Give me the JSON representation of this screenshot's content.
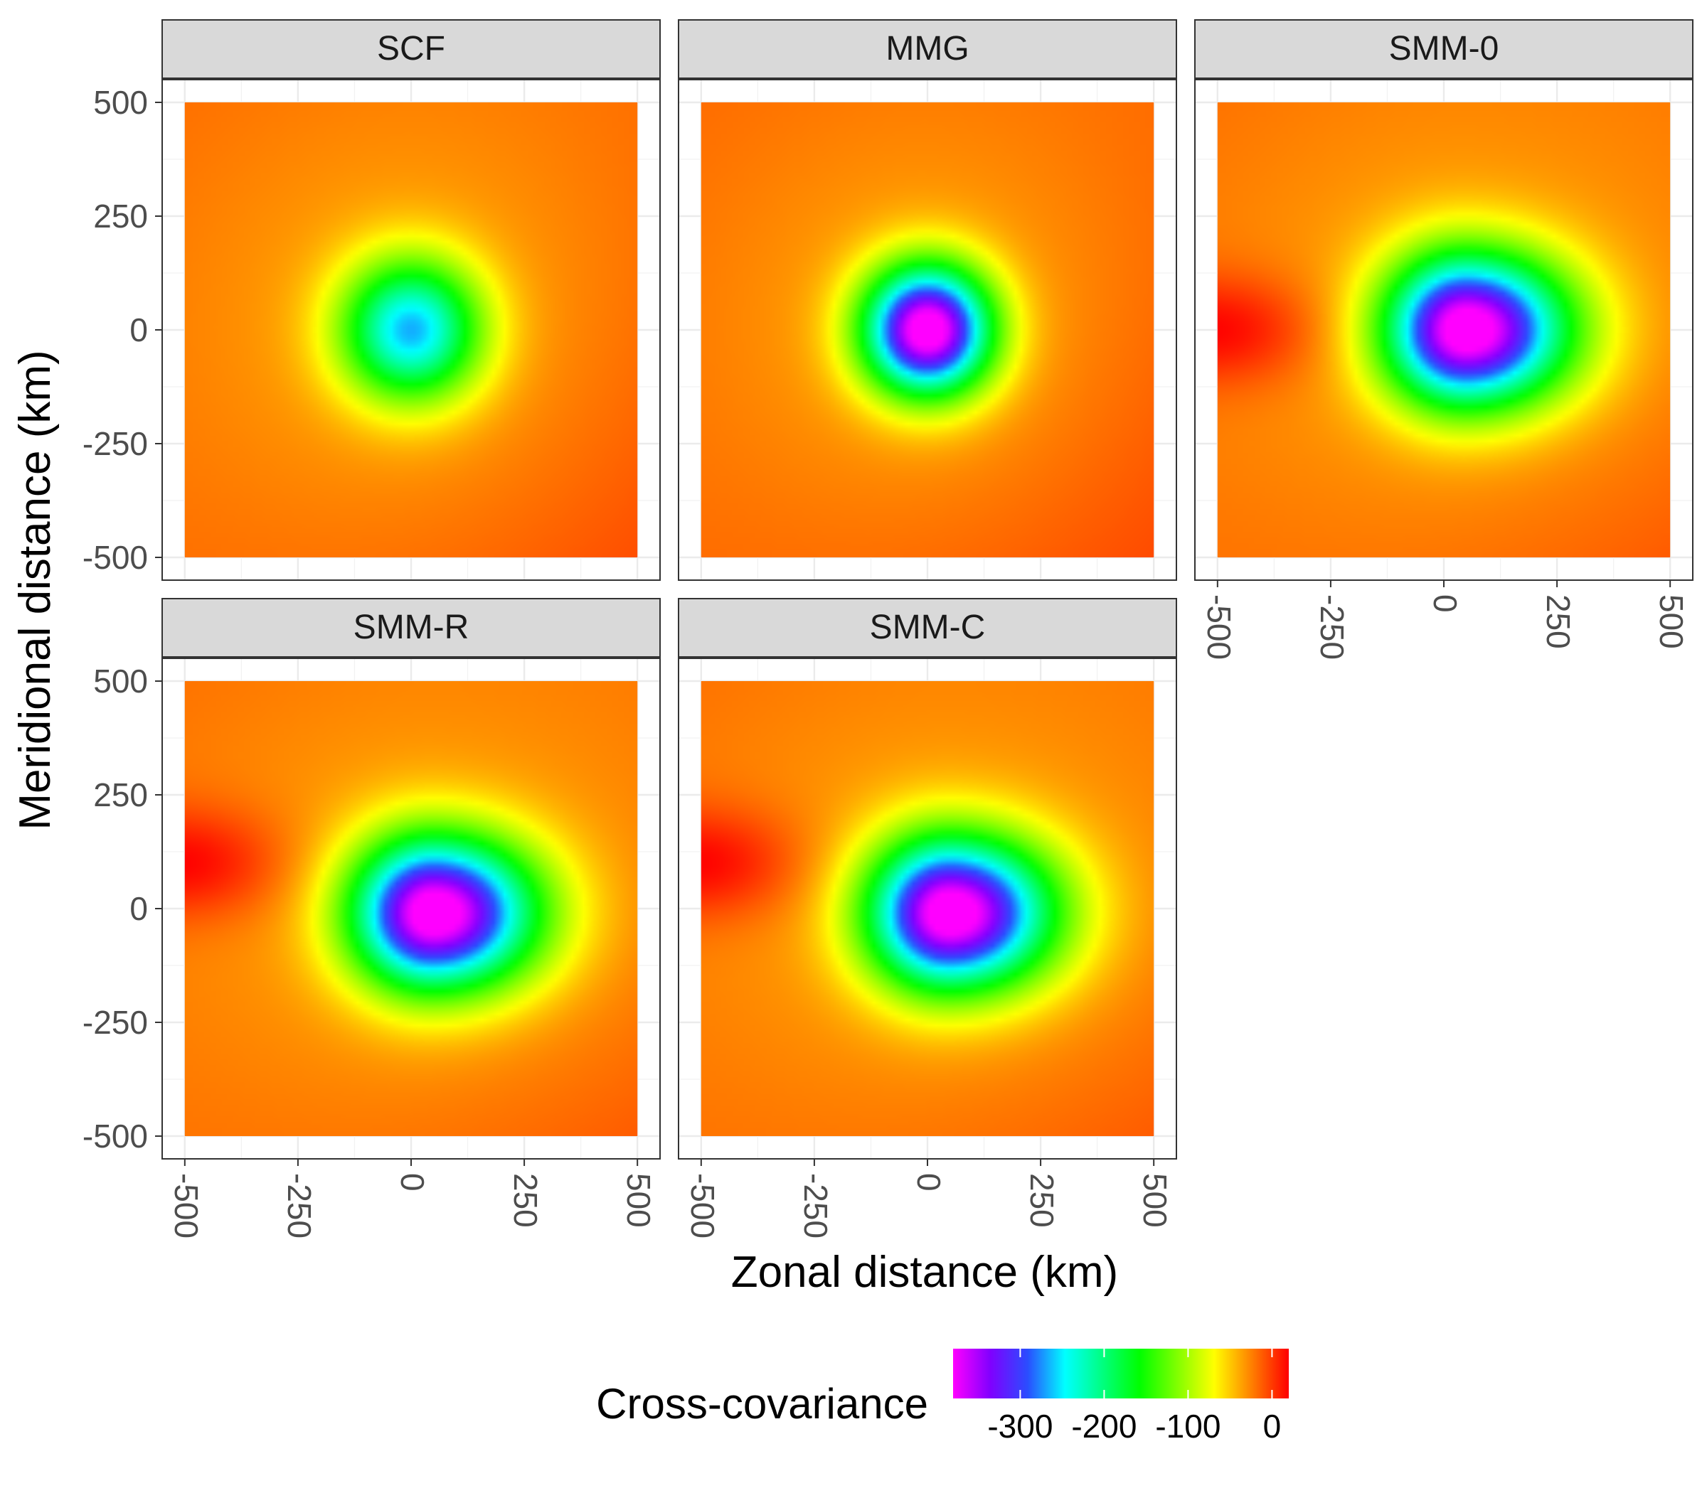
{
  "chart_data": {
    "type": "heatmap",
    "facets": [
      "SCF",
      "MMG",
      "SMM-0",
      "SMM-R",
      "SMM-C"
    ],
    "x_axis_label": "Zonal distance (km)",
    "y_axis_label": "Meridional distance (km)",
    "x_ticks": [
      -500,
      -250,
      0,
      250,
      500
    ],
    "y_ticks": [
      500,
      250,
      0,
      -250,
      -500
    ],
    "x_tick_labels": [
      "-500",
      "-250",
      "0",
      "250",
      "500"
    ],
    "y_tick_labels": [
      "500",
      "250",
      "0",
      "-250",
      "-500"
    ],
    "xlim": [
      -500,
      500
    ],
    "ylim": [
      -500,
      500
    ],
    "legend": {
      "title": "Cross-covariance",
      "position": "bottom",
      "range": [
        -380,
        20
      ],
      "ticks": [
        -300,
        -200,
        -100,
        0
      ],
      "tick_labels": [
        "-300",
        "-200",
        "-100",
        "0"
      ],
      "palette": [
        "#ff00ff",
        "#8000ff",
        "#2a4dff",
        "#00ffff",
        "#00ff80",
        "#00ff00",
        "#80ff00",
        "#ffff00",
        "#ff8000",
        "#ff0000"
      ]
    },
    "panels": [
      {
        "name": "SCF",
        "center": [
          0,
          0
        ],
        "minimum": -230,
        "scale_x": 120,
        "scale_y": 120,
        "west_lobe": false
      },
      {
        "name": "MMG",
        "center": [
          0,
          0
        ],
        "minimum": -370,
        "scale_x": 110,
        "scale_y": 110,
        "west_lobe": false
      },
      {
        "name": "SMM-0",
        "center": [
          50,
          0
        ],
        "minimum": -370,
        "scale_x": 140,
        "scale_y": 130,
        "west_lobe": true,
        "lobe_center": [
          -500,
          0
        ]
      },
      {
        "name": "SMM-R",
        "center": [
          50,
          -10
        ],
        "minimum": -370,
        "scale_x": 140,
        "scale_y": 130,
        "west_lobe": true,
        "lobe_center": [
          -500,
          100
        ]
      },
      {
        "name": "SMM-C",
        "center": [
          50,
          -10
        ],
        "minimum": -370,
        "scale_x": 140,
        "scale_y": 130,
        "west_lobe": true,
        "lobe_center": [
          -500,
          100
        ]
      }
    ]
  }
}
